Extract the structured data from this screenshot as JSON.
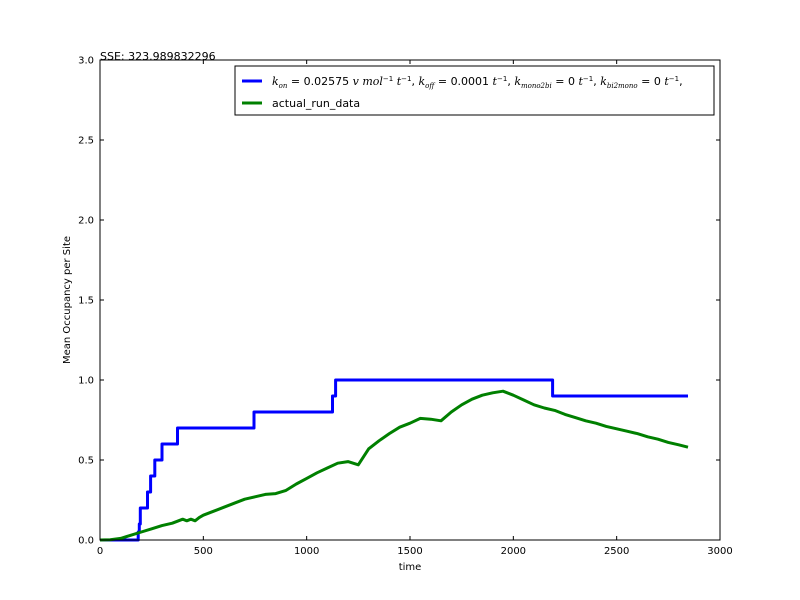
{
  "chart_data": {
    "type": "line",
    "annotation": "SSE: 323.989832296",
    "xlabel": "time",
    "ylabel": "Mean Occupancy per Site",
    "xlim": [
      0,
      3000
    ],
    "ylim": [
      0,
      3.0
    ],
    "x_ticks": [
      0,
      500,
      1000,
      1500,
      2000,
      2500,
      3000
    ],
    "x_tick_labels": [
      "0",
      "500",
      "1000",
      "1500",
      "2000",
      "2500",
      "3000"
    ],
    "y_ticks": [
      0,
      0.5,
      1.0,
      1.5,
      2.0,
      2.5,
      3.0
    ],
    "y_tick_labels": [
      "0.0",
      "0.5",
      "1.0",
      "1.5",
      "2.0",
      "2.5",
      "3.0"
    ],
    "grid": false,
    "legend_position": "top-right",
    "series": [
      {
        "name": "k_on = 0.02575 v mol^-1 t^-1, k_off = 0.0001 t^-1, k_mono2bi = 0 t^-1, k_bi2mono = 0 t^-1,",
        "legend_parts": {
          "kon_value": "0.02575",
          "koff_value": "0.0001",
          "kmono2bi_value": "0",
          "kbi2mono_value": "0"
        },
        "color": "#0000ff",
        "x": [
          0,
          185,
          185,
          190,
          190,
          195,
          195,
          230,
          230,
          245,
          245,
          265,
          265,
          300,
          300,
          350,
          350,
          360,
          360,
          375,
          375,
          745,
          745,
          1125,
          1125,
          1135,
          1135,
          1140,
          1140,
          2190,
          2190,
          2845
        ],
        "y": [
          0,
          0,
          0.05,
          0.05,
          0.1,
          0.1,
          0.2,
          0.2,
          0.3,
          0.3,
          0.4,
          0.4,
          0.5,
          0.5,
          0.6,
          0.6,
          0.6,
          0.6,
          0.6,
          0.6,
          0.7,
          0.7,
          0.8,
          0.8,
          0.9,
          0.9,
          0.9,
          0.9,
          1.0,
          1.0,
          0.9,
          0.9
        ]
      },
      {
        "name": "actual_run_data",
        "color": "#008000",
        "x": [
          0,
          50,
          100,
          150,
          200,
          250,
          300,
          350,
          380,
          400,
          420,
          440,
          460,
          480,
          500,
          550,
          600,
          650,
          700,
          750,
          800,
          850,
          900,
          950,
          1000,
          1050,
          1100,
          1150,
          1200,
          1250,
          1300,
          1350,
          1400,
          1450,
          1500,
          1550,
          1600,
          1650,
          1700,
          1750,
          1800,
          1850,
          1900,
          1950,
          2000,
          2050,
          2100,
          2150,
          2200,
          2250,
          2300,
          2350,
          2400,
          2450,
          2500,
          2550,
          2600,
          2650,
          2700,
          2750,
          2800,
          2845
        ],
        "y": [
          0,
          0.002,
          0.01,
          0.03,
          0.05,
          0.07,
          0.09,
          0.105,
          0.12,
          0.13,
          0.12,
          0.13,
          0.12,
          0.14,
          0.155,
          0.18,
          0.205,
          0.23,
          0.255,
          0.27,
          0.285,
          0.29,
          0.31,
          0.35,
          0.385,
          0.42,
          0.45,
          0.48,
          0.49,
          0.47,
          0.57,
          0.62,
          0.665,
          0.705,
          0.73,
          0.76,
          0.755,
          0.745,
          0.8,
          0.845,
          0.88,
          0.905,
          0.92,
          0.93,
          0.905,
          0.875,
          0.845,
          0.825,
          0.81,
          0.785,
          0.765,
          0.745,
          0.73,
          0.71,
          0.695,
          0.68,
          0.665,
          0.645,
          0.63,
          0.61,
          0.595,
          0.58
        ]
      }
    ]
  }
}
